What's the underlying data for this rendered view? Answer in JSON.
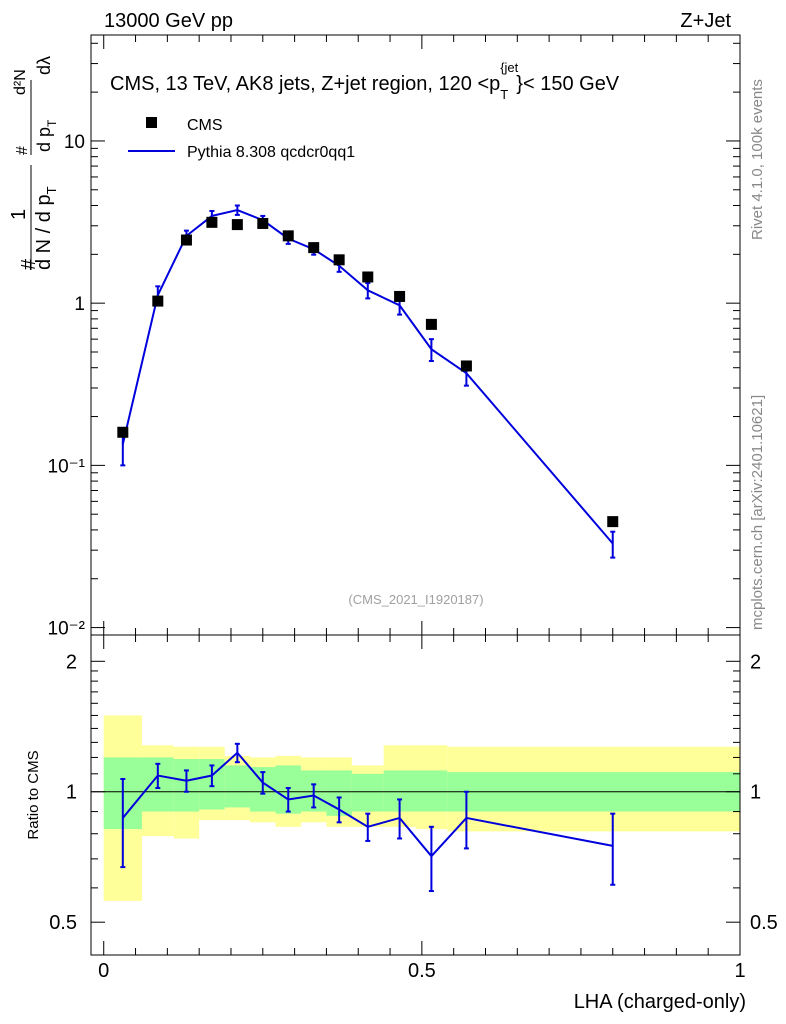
{
  "header": {
    "energy_label": "13000 GeV pp",
    "process_label": "Z+Jet"
  },
  "side_labels": {
    "rivet": "Rivet 4.1.0,  100k events",
    "mcplots": "mcplots.cern.ch [arXiv:2401.10621]"
  },
  "colors": {
    "data": "#000000",
    "mc": "#0000dd",
    "band_inner": "#99ff99",
    "band_outer": "#ffff99"
  },
  "chart_data": [
    {
      "type": "scatter",
      "title": "CMS, 13 TeV, AK8 jets, Z+jet region, 120 <p_T^{jet}< 150 GeV",
      "title_parts": {
        "main": "CMS, 13 TeV, AK8 jets, Z+jet region, 120 <p",
        "sub": "T",
        "sup": "{jet",
        "sup_close": "}",
        "tail": "< 150 GeV"
      },
      "ylabel": "1/N dN/dλ (d²N / dp_T dλ)",
      "ylabel_parts": {
        "hash": "#",
        "one": "1",
        "denom": "d N / d p",
        "denom_sub": "T",
        "sq": "d²N",
        "dpt": "d p",
        "dpt_sub": "T",
        "dl": "dλ"
      },
      "yscale": "log",
      "ylim": [
        0.009,
        45
      ],
      "xlim": [
        -0.02,
        1.0
      ],
      "ytick_labels": [
        "10⁻²",
        "10⁻¹",
        "1",
        "10"
      ],
      "ytick_values": [
        0.01,
        0.1,
        1,
        10
      ],
      "watermark": "(CMS_2021_I1920187)",
      "legend": [
        "CMS",
        "Pythia 8.308 qcdcr0qq1"
      ],
      "legend_position": "top-left",
      "series": [
        {
          "name": "CMS",
          "style": "markers",
          "x": [
            0.03,
            0.085,
            0.13,
            0.17,
            0.21,
            0.25,
            0.29,
            0.33,
            0.37,
            0.415,
            0.465,
            0.515,
            0.57,
            0.8
          ],
          "y": [
            0.16,
            1.03,
            2.45,
            3.15,
            3.05,
            3.1,
            2.6,
            2.2,
            1.85,
            1.45,
            1.1,
            0.74,
            0.41,
            0.045
          ]
        },
        {
          "name": "Pythia 8.308 qcdcr0qq1",
          "style": "line",
          "x": [
            0.03,
            0.085,
            0.13,
            0.17,
            0.21,
            0.25,
            0.29,
            0.33,
            0.37,
            0.415,
            0.465,
            0.515,
            0.57,
            0.8
          ],
          "y": [
            0.135,
            1.12,
            2.6,
            3.45,
            3.75,
            3.25,
            2.5,
            2.15,
            1.7,
            1.2,
            0.97,
            0.52,
            0.37,
            0.033
          ],
          "yerr_low": [
            0.035,
            0.15,
            0.2,
            0.25,
            0.25,
            0.2,
            0.18,
            0.16,
            0.14,
            0.13,
            0.12,
            0.08,
            0.06,
            0.006
          ],
          "yerr_high": [
            0.035,
            0.15,
            0.2,
            0.25,
            0.25,
            0.2,
            0.18,
            0.16,
            0.14,
            0.13,
            0.12,
            0.08,
            0.06,
            0.006
          ]
        }
      ]
    },
    {
      "type": "line",
      "ylabel": "Ratio to CMS",
      "xlabel": "LHA (charged-only)",
      "xlim": [
        -0.02,
        1.0
      ],
      "ylim": [
        0.42,
        2.3
      ],
      "yscale": "log",
      "xtick_labels": [
        "0",
        "0.5",
        "1"
      ],
      "xtick_values": [
        0,
        0.5,
        1
      ],
      "ytick_labels": [
        "0.5",
        "1",
        "2"
      ],
      "ytick_values": [
        0.5,
        1,
        2
      ],
      "reference_line": 1,
      "bands": {
        "edges": [
          0.0,
          0.06,
          0.11,
          0.15,
          0.19,
          0.23,
          0.27,
          0.31,
          0.35,
          0.39,
          0.44,
          0.49,
          0.54,
          0.6,
          1.0
        ],
        "inner_low": [
          0.82,
          0.9,
          0.9,
          0.91,
          0.92,
          0.9,
          0.89,
          0.9,
          0.88,
          0.9,
          0.9,
          0.9,
          0.9,
          0.9
        ],
        "inner_high": [
          1.2,
          1.2,
          1.19,
          1.19,
          1.15,
          1.14,
          1.15,
          1.12,
          1.12,
          1.1,
          1.12,
          1.12,
          1.11,
          1.11
        ],
        "outer_low": [
          0.56,
          0.79,
          0.78,
          0.86,
          0.86,
          0.85,
          0.83,
          0.85,
          0.83,
          0.83,
          0.83,
          0.82,
          0.81,
          0.81
        ],
        "outer_high": [
          1.5,
          1.28,
          1.27,
          1.27,
          1.21,
          1.2,
          1.21,
          1.2,
          1.2,
          1.15,
          1.28,
          1.28,
          1.27,
          1.27
        ]
      },
      "series": [
        {
          "name": "Pythia 8.308 qcdcr0qq1",
          "x": [
            0.03,
            0.085,
            0.13,
            0.17,
            0.21,
            0.25,
            0.29,
            0.33,
            0.37,
            0.415,
            0.465,
            0.515,
            0.57,
            0.8
          ],
          "y": [
            0.87,
            1.09,
            1.06,
            1.09,
            1.23,
            1.05,
            0.96,
            0.98,
            0.91,
            0.83,
            0.87,
            0.71,
            0.87,
            0.75
          ],
          "yerr_low": [
            0.2,
            0.07,
            0.06,
            0.06,
            0.06,
            0.06,
            0.06,
            0.06,
            0.06,
            0.06,
            0.09,
            0.12,
            0.13,
            0.14
          ],
          "yerr_high": [
            0.2,
            0.07,
            0.06,
            0.06,
            0.06,
            0.06,
            0.06,
            0.06,
            0.06,
            0.06,
            0.09,
            0.12,
            0.13,
            0.14
          ]
        }
      ]
    }
  ]
}
